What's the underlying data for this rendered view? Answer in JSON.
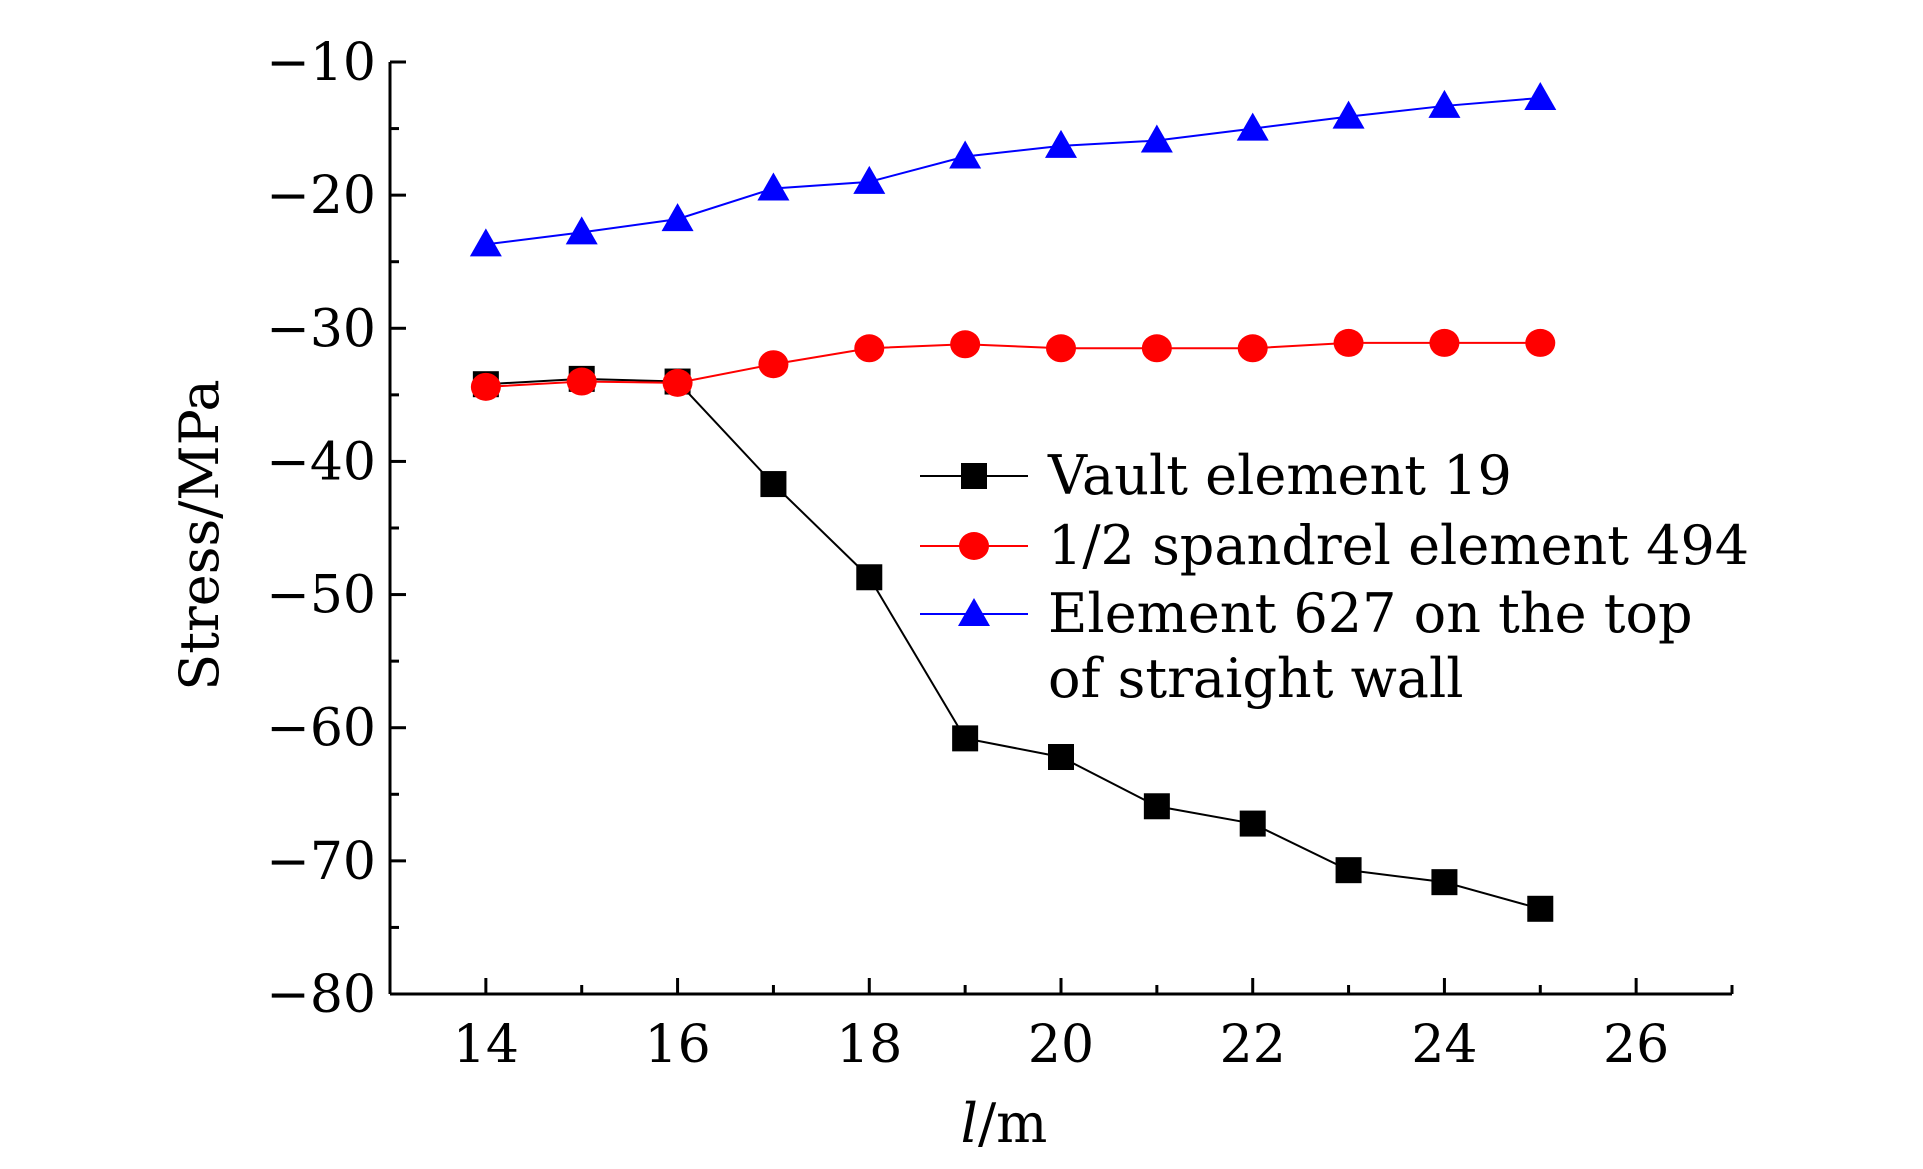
{
  "chart_data": {
    "type": "line",
    "title": "",
    "xlabel": "l/m",
    "xlabel_italic_part": "l",
    "xlabel_rest": "/m",
    "ylabel": "Stress/MPa",
    "xlim": [
      13,
      27
    ],
    "ylim": [
      -80,
      -10
    ],
    "x_ticks": [
      14,
      16,
      18,
      20,
      22,
      24,
      26
    ],
    "x_tick_labels": [
      "14",
      "16",
      "18",
      "20",
      "22",
      "24",
      "26"
    ],
    "y_ticks": [
      -80,
      -70,
      -60,
      -50,
      -40,
      -30,
      -20,
      -10
    ],
    "y_tick_labels": [
      "−80",
      "−70",
      "−60",
      "−50",
      "−40",
      "−30",
      "−20",
      "−10"
    ],
    "grid": false,
    "legend_position": "center-right",
    "x": [
      14,
      15,
      16,
      17,
      18,
      19,
      20,
      21,
      22,
      23,
      24,
      25
    ],
    "series": [
      {
        "name": "Vault element 19",
        "marker": "square",
        "color": "#000000",
        "values": [
          -34.2,
          -33.8,
          -34.0,
          -41.7,
          -48.7,
          -60.8,
          -62.2,
          -65.9,
          -67.2,
          -70.7,
          -71.6,
          -73.6
        ]
      },
      {
        "name": "1/2 spandrel element 494",
        "marker": "circle",
        "color": "#ff0000",
        "values": [
          -34.4,
          -34.0,
          -34.1,
          -32.7,
          -31.5,
          -31.2,
          -31.5,
          -31.5,
          -31.5,
          -31.1,
          -31.1,
          -31.1
        ]
      },
      {
        "name": "Element 627 on the top of straight wall",
        "name_lines": [
          "Element 627 on the top",
          "of straight wall"
        ],
        "marker": "triangle",
        "color": "#0000ff",
        "values": [
          -23.7,
          -22.8,
          -21.8,
          -19.5,
          -19.0,
          -17.1,
          -16.3,
          -15.9,
          -15.0,
          -14.1,
          -13.3,
          -12.7
        ]
      }
    ]
  }
}
